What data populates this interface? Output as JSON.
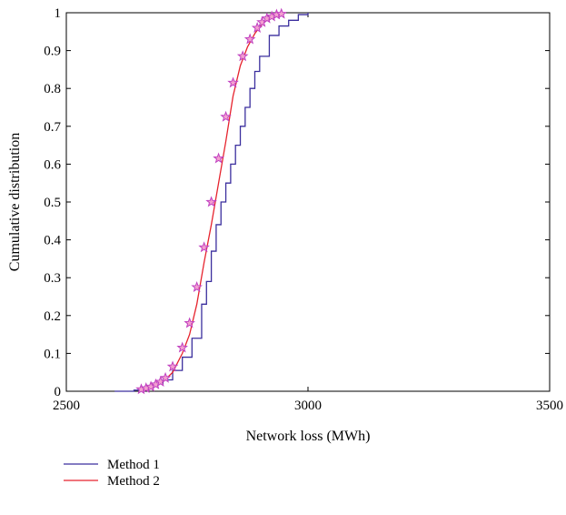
{
  "chart_data": {
    "type": "line",
    "title": "",
    "xlabel": "Network loss (MWh)",
    "ylabel": "Cumulative distribution",
    "xlim": [
      2500,
      3500
    ],
    "ylim": [
      0,
      1
    ],
    "x_ticks": [
      "2500",
      "3000",
      "3500"
    ],
    "y_ticks": [
      "0",
      "0.1",
      "0.2",
      "0.3",
      "0.4",
      "0.5",
      "0.6",
      "0.7",
      "0.8",
      "0.9",
      "1"
    ],
    "grid": false,
    "legend_position": "bottom-left, below plot",
    "series": [
      {
        "name": "Method 1",
        "color": "#3b2f9e",
        "marker": "none",
        "points": [
          [
            2600,
            0
          ],
          [
            2640,
            0.003
          ],
          [
            2660,
            0.01
          ],
          [
            2680,
            0.02
          ],
          [
            2700,
            0.03
          ],
          [
            2720,
            0.055
          ],
          [
            2740,
            0.09
          ],
          [
            2760,
            0.14
          ],
          [
            2780,
            0.23
          ],
          [
            2790,
            0.29
          ],
          [
            2800,
            0.37
          ],
          [
            2810,
            0.44
          ],
          [
            2820,
            0.5
          ],
          [
            2830,
            0.55
          ],
          [
            2840,
            0.6
          ],
          [
            2850,
            0.65
          ],
          [
            2860,
            0.7
          ],
          [
            2870,
            0.75
          ],
          [
            2880,
            0.8
          ],
          [
            2890,
            0.845
          ],
          [
            2900,
            0.885
          ],
          [
            2920,
            0.94
          ],
          [
            2940,
            0.965
          ],
          [
            2960,
            0.98
          ],
          [
            2980,
            0.995
          ],
          [
            3000,
            1
          ]
        ]
      },
      {
        "name": "Method 2",
        "color": "#e6232d",
        "marker": "star",
        "marker_color": "#c040c0",
        "points": [
          [
            2655,
            0.005
          ],
          [
            2680,
            0.015
          ],
          [
            2700,
            0.025
          ],
          [
            2720,
            0.05
          ],
          [
            2740,
            0.1
          ],
          [
            2755,
            0.15
          ],
          [
            2770,
            0.23
          ],
          [
            2785,
            0.34
          ],
          [
            2800,
            0.44
          ],
          [
            2815,
            0.55
          ],
          [
            2830,
            0.66
          ],
          [
            2845,
            0.78
          ],
          [
            2860,
            0.86
          ],
          [
            2875,
            0.91
          ],
          [
            2890,
            0.945
          ],
          [
            2905,
            0.97
          ],
          [
            2920,
            0.985
          ],
          [
            2935,
            0.995
          ],
          [
            2950,
            1
          ]
        ],
        "marker_points": [
          [
            2655,
            0.005
          ],
          [
            2665,
            0.008
          ],
          [
            2675,
            0.012
          ],
          [
            2685,
            0.018
          ],
          [
            2695,
            0.025
          ],
          [
            2705,
            0.035
          ],
          [
            2720,
            0.065
          ],
          [
            2740,
            0.115
          ],
          [
            2755,
            0.18
          ],
          [
            2770,
            0.275
          ],
          [
            2785,
            0.38
          ],
          [
            2800,
            0.5
          ],
          [
            2815,
            0.615
          ],
          [
            2830,
            0.725
          ],
          [
            2845,
            0.815
          ],
          [
            2865,
            0.885
          ],
          [
            2880,
            0.93
          ],
          [
            2895,
            0.96
          ],
          [
            2905,
            0.975
          ],
          [
            2915,
            0.985
          ],
          [
            2925,
            0.99
          ],
          [
            2935,
            0.995
          ],
          [
            2945,
            0.997
          ]
        ]
      }
    ]
  }
}
